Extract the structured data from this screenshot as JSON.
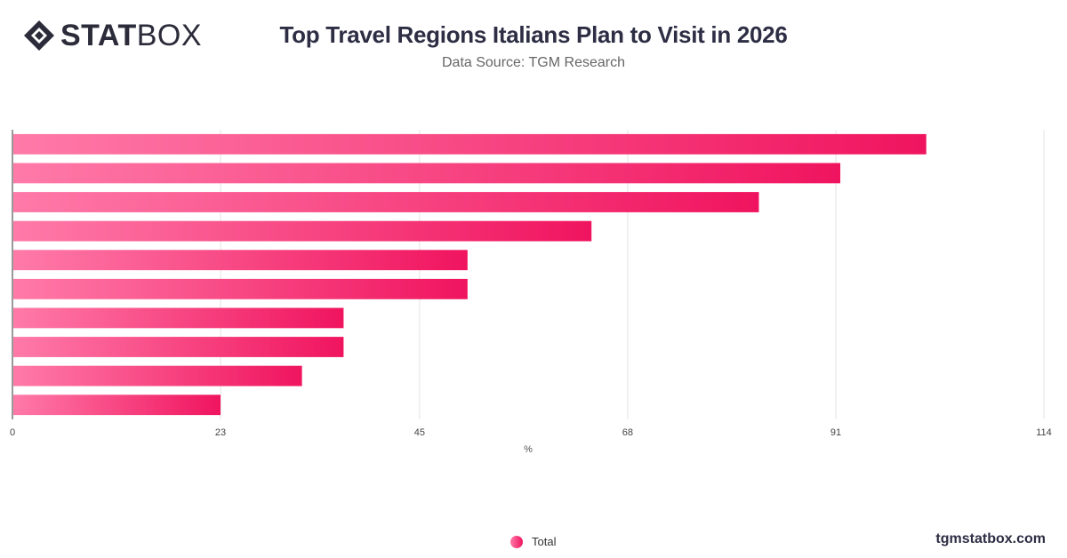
{
  "header": {
    "logo_bold": "STAT",
    "logo_light": "BOX",
    "title": "Top Travel Regions Italians Plan to Visit in 2026",
    "subtitle": "Data Source: TGM Research"
  },
  "footer": {
    "site": "tgmstatbox.com"
  },
  "colors": {
    "bar_start": "#ff7aa8",
    "bar_end": "#f0145f",
    "grid": "#e3e3e3",
    "axis": "#333333"
  },
  "chart_data": {
    "type": "bar",
    "orientation": "horizontal",
    "xlabel": "%",
    "xlim": [
      0,
      114
    ],
    "ticks": [
      0,
      23,
      45,
      68,
      91,
      114
    ],
    "grid": true,
    "legend_position": "bottom",
    "series": [
      {
        "name": "Total",
        "values": [
          101,
          91.5,
          82.5,
          64,
          50.3,
          50.3,
          36.6,
          36.6,
          32,
          23
        ]
      }
    ]
  }
}
